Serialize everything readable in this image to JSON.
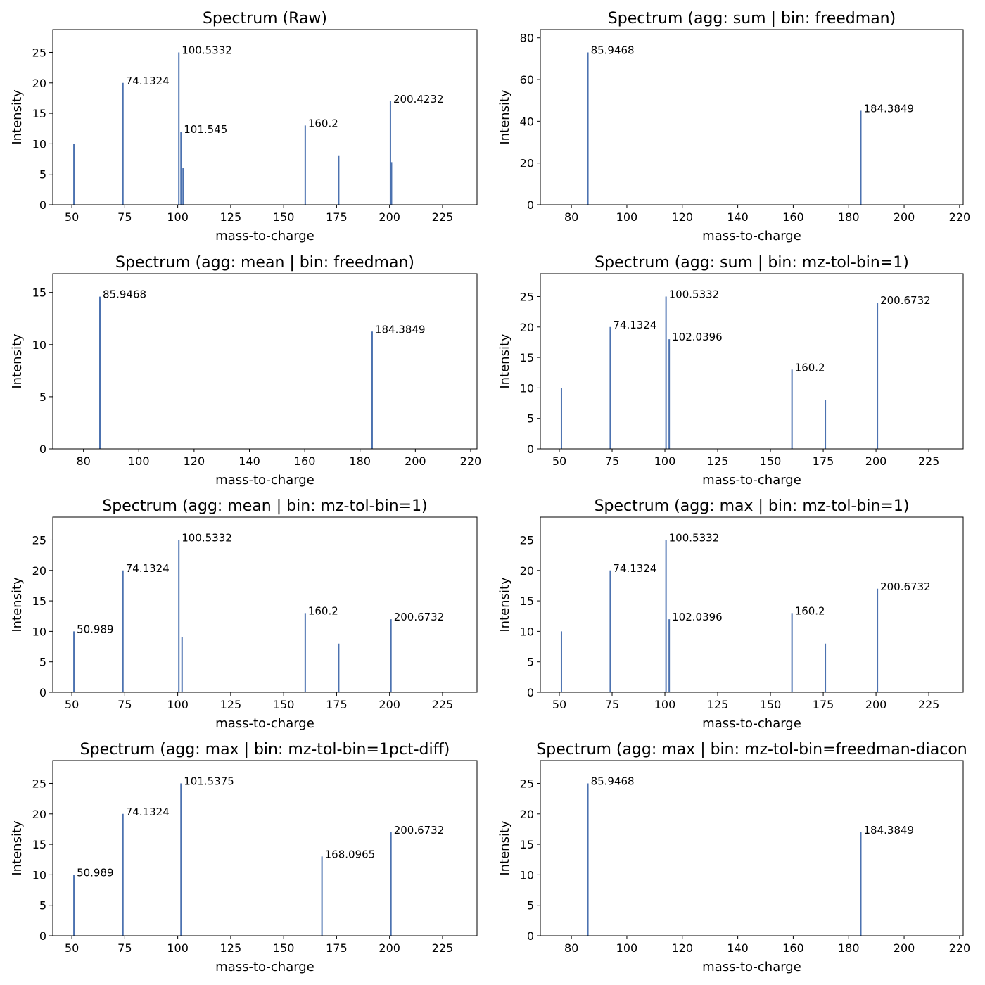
{
  "chart_data": [
    {
      "type": "bar",
      "title": "Spectrum (Raw)",
      "xlabel": "mass-to-charge",
      "ylabel": "Intensity",
      "xlim": [
        41,
        241.3
      ],
      "ylim": [
        0,
        28.75
      ],
      "xticks": [
        50,
        75,
        100,
        125,
        150,
        175,
        200,
        225
      ],
      "yticks": [
        0,
        5,
        10,
        15,
        20,
        25
      ],
      "peaks": [
        {
          "mz": 50.989,
          "intensity": 10
        },
        {
          "mz": 74.1324,
          "intensity": 20,
          "label": "74.1324"
        },
        {
          "mz": 100.5332,
          "intensity": 25,
          "label": "100.5332"
        },
        {
          "mz": 101.545,
          "intensity": 12,
          "label": "101.545"
        },
        {
          "mz": 102.534,
          "intensity": 6
        },
        {
          "mz": 160.2,
          "intensity": 13,
          "label": "160.2"
        },
        {
          "mz": 176.0,
          "intensity": 8
        },
        {
          "mz": 200.4232,
          "intensity": 17,
          "label": "200.4232"
        },
        {
          "mz": 200.9232,
          "intensity": 7
        }
      ]
    },
    {
      "type": "bar",
      "title": "Spectrum (agg: sum | bin: freedman)",
      "xlabel": "mass-to-charge",
      "ylabel": "Intensity",
      "xlim": [
        68.8,
        221.3
      ],
      "ylim": [
        0,
        83.95
      ],
      "xticks": [
        80,
        100,
        120,
        140,
        160,
        180,
        200,
        220
      ],
      "yticks": [
        0,
        20,
        40,
        60,
        80
      ],
      "peaks": [
        {
          "mz": 85.9468,
          "intensity": 73,
          "label": "85.9468"
        },
        {
          "mz": 184.3849,
          "intensity": 45,
          "label": "184.3849"
        }
      ]
    },
    {
      "type": "bar",
      "title": "Spectrum (agg: mean | bin: freedman)",
      "xlabel": "mass-to-charge",
      "ylabel": "Intensity",
      "xlim": [
        68.9,
        222.3
      ],
      "ylim": [
        0,
        16.8
      ],
      "xticks": [
        80,
        100,
        120,
        140,
        160,
        180,
        200,
        220
      ],
      "yticks": [
        0,
        5,
        10,
        15
      ],
      "peaks": [
        {
          "mz": 85.9468,
          "intensity": 14.6,
          "label": "85.9468"
        },
        {
          "mz": 184.3849,
          "intensity": 11.25,
          "label": "184.3849"
        }
      ]
    },
    {
      "type": "bar",
      "title": "Spectrum (agg: sum | bin: mz-tol-bin=1)",
      "xlabel": "mass-to-charge",
      "ylabel": "Intensity",
      "xlim": [
        41,
        241.3
      ],
      "ylim": [
        0,
        28.75
      ],
      "xticks": [
        50,
        75,
        100,
        125,
        150,
        175,
        200,
        225
      ],
      "yticks": [
        0,
        5,
        10,
        15,
        20,
        25
      ],
      "peaks": [
        {
          "mz": 50.989,
          "intensity": 10
        },
        {
          "mz": 74.1324,
          "intensity": 20,
          "label": "74.1324"
        },
        {
          "mz": 100.5332,
          "intensity": 25,
          "label": "100.5332"
        },
        {
          "mz": 102.0396,
          "intensity": 18,
          "label": "102.0396"
        },
        {
          "mz": 160.2,
          "intensity": 13,
          "label": "160.2"
        },
        {
          "mz": 176.0,
          "intensity": 8
        },
        {
          "mz": 200.6732,
          "intensity": 24,
          "label": "200.6732"
        }
      ]
    },
    {
      "type": "bar",
      "title": "Spectrum (agg: mean | bin: mz-tol-bin=1)",
      "xlabel": "mass-to-charge",
      "ylabel": "Intensity",
      "xlim": [
        41,
        241.3
      ],
      "ylim": [
        0,
        28.75
      ],
      "xticks": [
        50,
        75,
        100,
        125,
        150,
        175,
        200,
        225
      ],
      "yticks": [
        0,
        5,
        10,
        15,
        20,
        25
      ],
      "peaks": [
        {
          "mz": 50.989,
          "intensity": 10,
          "label": "50.989"
        },
        {
          "mz": 74.1324,
          "intensity": 20,
          "label": "74.1324"
        },
        {
          "mz": 100.5332,
          "intensity": 25,
          "label": "100.5332"
        },
        {
          "mz": 102.0396,
          "intensity": 9
        },
        {
          "mz": 160.2,
          "intensity": 13,
          "label": "160.2"
        },
        {
          "mz": 176.0,
          "intensity": 8
        },
        {
          "mz": 200.6732,
          "intensity": 12,
          "label": "200.6732"
        }
      ]
    },
    {
      "type": "bar",
      "title": "Spectrum (agg: max | bin: mz-tol-bin=1)",
      "xlabel": "mass-to-charge",
      "ylabel": "Intensity",
      "xlim": [
        41,
        241.3
      ],
      "ylim": [
        0,
        28.75
      ],
      "xticks": [
        50,
        75,
        100,
        125,
        150,
        175,
        200,
        225
      ],
      "yticks": [
        0,
        5,
        10,
        15,
        20,
        25
      ],
      "peaks": [
        {
          "mz": 50.989,
          "intensity": 10
        },
        {
          "mz": 74.1324,
          "intensity": 20,
          "label": "74.1324"
        },
        {
          "mz": 100.5332,
          "intensity": 25,
          "label": "100.5332"
        },
        {
          "mz": 102.0396,
          "intensity": 12,
          "label": "102.0396"
        },
        {
          "mz": 160.2,
          "intensity": 13,
          "label": "160.2"
        },
        {
          "mz": 176.0,
          "intensity": 8
        },
        {
          "mz": 200.6732,
          "intensity": 17,
          "label": "200.6732"
        }
      ]
    },
    {
      "type": "bar",
      "title": "Spectrum (agg: max | bin: mz-tol-bin=1pct-diff)",
      "xlabel": "mass-to-charge",
      "ylabel": "Intensity",
      "xlim": [
        41,
        241.3
      ],
      "ylim": [
        0,
        28.75
      ],
      "xticks": [
        50,
        75,
        100,
        125,
        150,
        175,
        200,
        225
      ],
      "yticks": [
        0,
        5,
        10,
        15,
        20,
        25
      ],
      "peaks": [
        {
          "mz": 50.989,
          "intensity": 10,
          "label": "50.989"
        },
        {
          "mz": 74.1324,
          "intensity": 20,
          "label": "74.1324"
        },
        {
          "mz": 101.5375,
          "intensity": 25,
          "label": "101.5375"
        },
        {
          "mz": 168.0965,
          "intensity": 13,
          "label": "168.0965"
        },
        {
          "mz": 200.6732,
          "intensity": 17,
          "label": "200.6732"
        }
      ]
    },
    {
      "type": "bar",
      "title": "Spectrum (agg: max | bin: mz-tol-bin=freedman-diacon",
      "xlabel": "mass-to-charge",
      "ylabel": "Intensity",
      "xlim": [
        68.8,
        221.3
      ],
      "ylim": [
        0,
        28.75
      ],
      "xticks": [
        80,
        100,
        120,
        140,
        160,
        180,
        200,
        220
      ],
      "yticks": [
        0,
        5,
        10,
        15,
        20,
        25
      ],
      "peaks": [
        {
          "mz": 85.9468,
          "intensity": 25,
          "label": "85.9468"
        },
        {
          "mz": 184.3849,
          "intensity": 17,
          "label": "184.3849"
        }
      ]
    }
  ],
  "colors": {
    "bar": "#4c72b0",
    "axes": "#000000",
    "background": "#ffffff"
  }
}
